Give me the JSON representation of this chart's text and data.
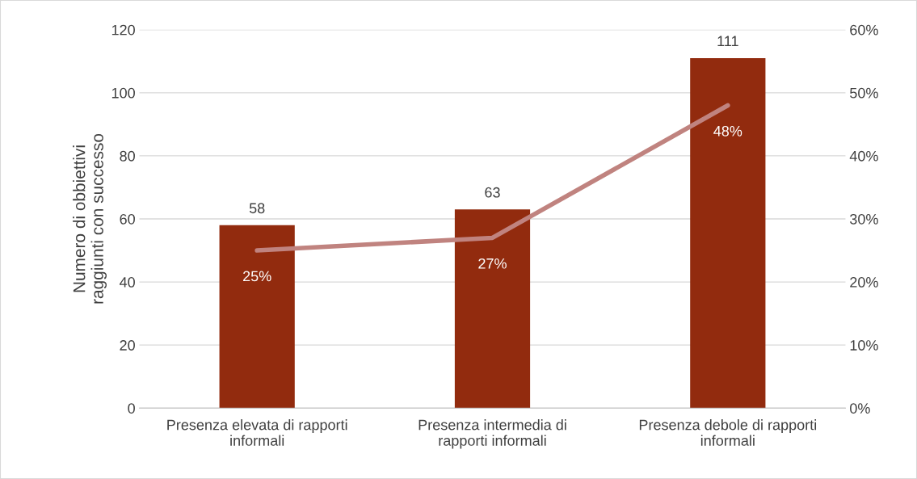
{
  "chart_data": {
    "type": "bar",
    "ylabel": "Numero di obbiettivi\nraggiunti con successo",
    "categories": [
      "Presenza elevata di rapporti\ninformali",
      "Presenza intermedia di\nrapporti informali",
      "Presenza debole di rapporti\ninformali"
    ],
    "series": [
      {
        "color": "#922b0e",
        "values": [
          58,
          63,
          111
        ],
        "value_labels": [
          "58",
          "63",
          "111"
        ]
      },
      {
        "type": "line",
        "axis": "y2",
        "color": "#c0837f",
        "values": [
          25,
          27,
          48
        ],
        "value_labels": [
          "25%",
          "27%",
          "48%"
        ]
      }
    ],
    "ylim": [
      0,
      120
    ],
    "yticks": [
      0,
      20,
      40,
      60,
      80,
      100,
      120
    ],
    "y2lim": [
      0,
      60
    ],
    "y2ticks": [
      {
        "value": 0,
        "label": "0%"
      },
      {
        "value": 10,
        "label": "10%"
      },
      {
        "value": 20,
        "label": "20%"
      },
      {
        "value": 30,
        "label": "30%"
      },
      {
        "value": 40,
        "label": "40%"
      },
      {
        "value": 50,
        "label": "50%"
      },
      {
        "value": 60,
        "label": "60%"
      }
    ],
    "grid": "y",
    "marker": "none",
    "line_style": "solid"
  }
}
